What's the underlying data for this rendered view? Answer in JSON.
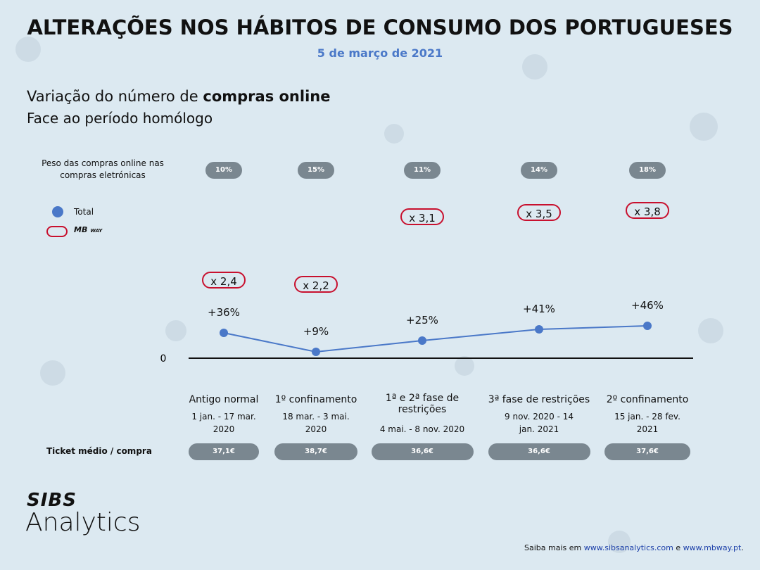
{
  "title": "ALTERAÇÕES NOS HÁBITOS DE CONSUMO DOS PORTUGUESES",
  "date": "5 de março de 2021",
  "heading": {
    "normal": "Variação do número de",
    "bold": "compras online",
    "sub": "Face ao período homólogo"
  },
  "chart_data": {
    "type": "line",
    "categories": [
      "Antigo normal",
      "1º confinamento",
      "1ª e 2ª fase de restrições",
      "3ª fase de restrições",
      "2º confinamento"
    ],
    "periods": [
      "1 jan. - 17 mar. 2020",
      "18 mar. - 3 mai. 2020",
      "4 mai. - 8 nov. 2020",
      "9 nov. 2020 - 14 jan. 2021",
      "15 jan. - 28 fev. 2021"
    ],
    "series": [
      {
        "name": "Total",
        "color": "#4a78c8",
        "values": [
          36,
          9,
          25,
          41,
          46
        ],
        "value_labels": [
          "+36%",
          "+9%",
          "+25%",
          "+41%",
          "+46%"
        ]
      }
    ],
    "mbway": {
      "name": [
        "MB",
        "WAY"
      ],
      "color": "#c8102e",
      "labels": [
        "x 2,4",
        "x 2,2",
        "x 3,1",
        "x 3,5",
        "x 3,8"
      ]
    },
    "online_share": {
      "label": "Peso das compras online nas compras eletrónicas",
      "labels": [
        "10%",
        "15%",
        "11%",
        "14%",
        "18%"
      ]
    },
    "ticket": {
      "label": "Ticket médio / compra",
      "labels": [
        "37,1€",
        "38,7€",
        "36,6€",
        "36,6€",
        "37,6€"
      ]
    },
    "ylim": [
      0,
      100
    ],
    "yticks": [
      0
    ]
  },
  "footer": {
    "text": "Saiba mais em",
    "link1": "www.sibsanalytics.com",
    "and": "e",
    "link2": "www.mbway.pt",
    "end": "."
  },
  "logo": {
    "top": "SIBS",
    "bottom": "Analytics"
  }
}
